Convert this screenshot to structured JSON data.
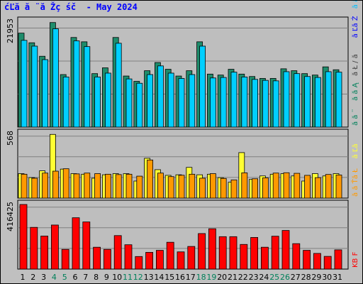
{
  "title": "ćĽă ă ¨ă Žç śč  - May 2024",
  "colors": {
    "background": "#c0c0c0",
    "panel": "#bebebe",
    "hits": "#1e8c6b",
    "files": "#00cfff",
    "pages": "#ffff33",
    "visits": "#ff9900",
    "kbytes": "#ff0000",
    "weekend": "#00805a",
    "title": "#0000ff"
  },
  "chart_data": [
    {
      "type": "bar",
      "title": "ćĽă ă ¨ă Žç śč  - May 2024",
      "ylabel": "21953",
      "ylim": [
        0,
        21953
      ],
      "right_labels": [
        {
          "text": "ă ă ¨",
          "color": "#00805a"
        },
        {
          "text": "ă ă Ą",
          "color": "#00805a"
        },
        {
          "text": "ă Ł / ă ",
          "color": "#404040"
        },
        {
          "text": "ă Ľă Ż",
          "color": "#0000ff"
        },
        {
          "text": "ă ă Ą",
          "color": "#00bfff"
        }
      ],
      "categories": [
        "1",
        "2",
        "3",
        "4",
        "5",
        "6",
        "7",
        "8",
        "9",
        "10",
        "11",
        "12",
        "13",
        "14",
        "15",
        "16",
        "17",
        "18",
        "19",
        "20",
        "21",
        "22",
        "23",
        "24",
        "25",
        "26",
        "27",
        "28",
        "29",
        "30",
        "31"
      ],
      "series": [
        {
          "name": "hits",
          "values": [
            19500,
            17500,
            14700,
            21700,
            10900,
            18600,
            17700,
            11100,
            12300,
            18600,
            10600,
            9500,
            11700,
            13400,
            12000,
            10600,
            11700,
            17700,
            11000,
            10800,
            12000,
            11000,
            10500,
            10100,
            10100,
            12100,
            11700,
            11100,
            10800,
            12500,
            11900
          ]
        },
        {
          "name": "files",
          "values": [
            18000,
            16800,
            14000,
            20400,
            10400,
            17900,
            16700,
            10400,
            11200,
            17400,
            10000,
            9100,
            10900,
            12700,
            11200,
            10100,
            10900,
            16800,
            10200,
            10300,
            11400,
            10400,
            9900,
            9700,
            9600,
            11500,
            11100,
            10500,
            10300,
            11500,
            11400
          ]
        }
      ]
    },
    {
      "type": "bar",
      "ylabel": "568",
      "ylim": [
        0,
        568
      ],
      "right_labels": [
        {
          "text": "ă ă Ťă Ł",
          "color": "#ff9900"
        },
        {
          "text": "ă Ľă ",
          "color": "#ffff33"
        }
      ],
      "categories": [
        "1",
        "2",
        "3",
        "4",
        "5",
        "6",
        "7",
        "8",
        "9",
        "10",
        "11",
        "12",
        "13",
        "14",
        "15",
        "16",
        "17",
        "18",
        "19",
        "20",
        "21",
        "22",
        "23",
        "24",
        "25",
        "26",
        "27",
        "28",
        "29",
        "30",
        "31"
      ],
      "series": [
        {
          "name": "pages",
          "values": [
            215,
            180,
            240,
            560,
            255,
            215,
            210,
            175,
            205,
            215,
            215,
            150,
            350,
            250,
            200,
            205,
            270,
            205,
            210,
            180,
            140,
            400,
            165,
            195,
            210,
            215,
            195,
            150,
            215,
            195,
            215
          ]
        },
        {
          "name": "visits",
          "values": [
            210,
            175,
            220,
            237,
            258,
            213,
            220,
            215,
            210,
            207,
            210,
            193,
            335,
            220,
            189,
            201,
            210,
            175,
            215,
            173,
            160,
            222,
            170,
            178,
            220,
            223,
            218,
            200,
            180,
            208,
            203
          ]
        }
      ]
    },
    {
      "type": "bar",
      "ylabel": "416425",
      "ylim": [
        0,
        416425
      ],
      "right_labels": [
        {
          "text": "KB F",
          "color": "#ff0000"
        }
      ],
      "categories": [
        "1",
        "2",
        "3",
        "4",
        "5",
        "6",
        "7",
        "8",
        "9",
        "10",
        "11",
        "12",
        "13",
        "14",
        "15",
        "16",
        "17",
        "18",
        "19",
        "20",
        "21",
        "22",
        "23",
        "24",
        "25",
        "26",
        "27",
        "28",
        "29",
        "30",
        "31"
      ],
      "series": [
        {
          "name": "kbytes",
          "values": [
            418000,
            269000,
            213000,
            284000,
            127000,
            331000,
            304000,
            141000,
            127000,
            216000,
            157000,
            81000,
            108000,
            121000,
            173000,
            111000,
            146000,
            229000,
            260000,
            209000,
            209000,
            159000,
            204000,
            141000,
            212000,
            249000,
            164000,
            121000,
            101000,
            82000,
            124000
          ]
        }
      ]
    }
  ],
  "x_axis": {
    "labels": [
      "1",
      "2",
      "3",
      "4",
      "5",
      "6",
      "7",
      "8",
      "9",
      "10",
      "11",
      "12",
      "13",
      "14",
      "15",
      "16",
      "17",
      "18",
      "19",
      "20",
      "21",
      "22",
      "23",
      "24",
      "25",
      "26",
      "27",
      "28",
      "29",
      "30",
      "31"
    ],
    "weekend_days": [
      4,
      5,
      11,
      12,
      18,
      19,
      25,
      26
    ]
  }
}
